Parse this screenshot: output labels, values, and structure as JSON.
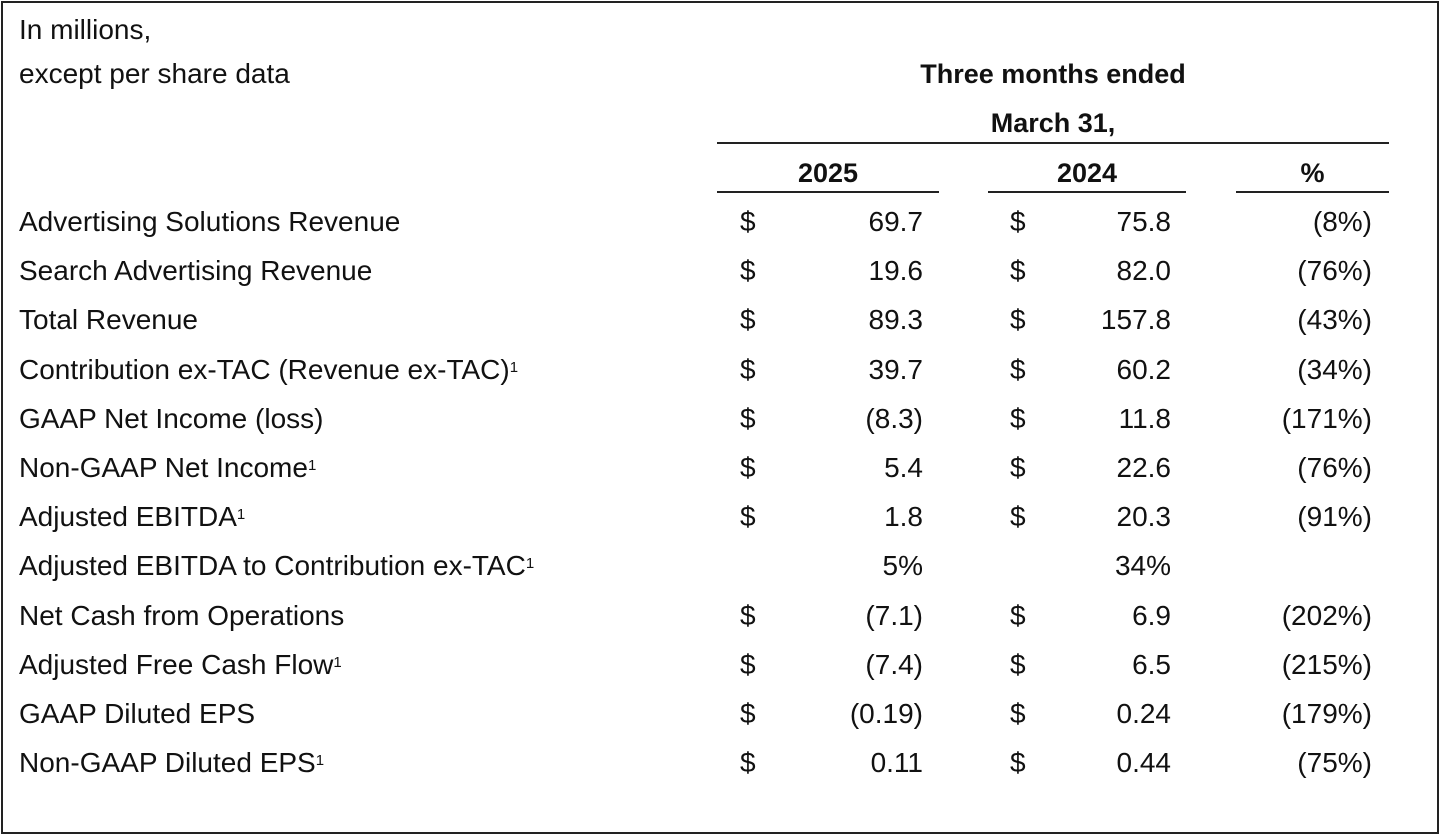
{
  "header": {
    "unit_note_line1": "In millions,",
    "unit_note_line2": "except per share data",
    "period_line1": "Three months ended",
    "period_line2": "March 31,",
    "col_2025": "2025",
    "col_2024": "2024",
    "col_pct": "%"
  },
  "rows": [
    {
      "label": "Advertising Solutions Revenue",
      "sup": "",
      "cur2025": "$",
      "val2025": "69.7",
      "cur2024": "$",
      "val2024": "75.8",
      "pct": "(8%)"
    },
    {
      "label": "Search Advertising Revenue",
      "sup": "",
      "cur2025": "$",
      "val2025": "19.6",
      "cur2024": "$",
      "val2024": "82.0",
      "pct": "(76%)"
    },
    {
      "label": "Total Revenue",
      "sup": "",
      "cur2025": "$",
      "val2025": "89.3",
      "cur2024": "$",
      "val2024": "157.8",
      "pct": "(43%)"
    },
    {
      "label": "Contribution ex-TAC (Revenue ex-TAC)",
      "sup": "1",
      "cur2025": "$",
      "val2025": "39.7",
      "cur2024": "$",
      "val2024": "60.2",
      "pct": "(34%)"
    },
    {
      "label": "GAAP Net Income (loss)",
      "sup": "",
      "cur2025": "$",
      "val2025": "(8.3)",
      "cur2024": "$",
      "val2024": "11.8",
      "pct": "(171%)"
    },
    {
      "label": "Non-GAAP Net Income",
      "sup": "1",
      "cur2025": "$",
      "val2025": "5.4",
      "cur2024": "$",
      "val2024": "22.6",
      "pct": "(76%)"
    },
    {
      "label": "Adjusted EBITDA",
      "sup": "1",
      "cur2025": "$",
      "val2025": "1.8",
      "cur2024": "$",
      "val2024": "20.3",
      "pct": "(91%)"
    },
    {
      "label": "Adjusted EBITDA to Contribution ex-TAC",
      "sup": "1",
      "cur2025": "",
      "val2025": "5%",
      "cur2024": "",
      "val2024": "34%",
      "pct": ""
    },
    {
      "label": "Net Cash from Operations",
      "sup": "",
      "cur2025": "$",
      "val2025": "(7.1)",
      "cur2024": "$",
      "val2024": "6.9",
      "pct": "(202%)"
    },
    {
      "label": "Adjusted Free Cash Flow",
      "sup": "1",
      "cur2025": "$",
      "val2025": "(7.4)",
      "cur2024": "$",
      "val2024": "6.5",
      "pct": "(215%)"
    },
    {
      "label": "GAAP Diluted EPS",
      "sup": "",
      "cur2025": "$",
      "val2025": "(0.19)",
      "cur2024": "$",
      "val2024": "0.24",
      "pct": "(179%)"
    },
    {
      "label": "Non-GAAP Diluted EPS",
      "sup": "1",
      "cur2025": "$",
      "val2025": "0.11",
      "cur2024": "$",
      "val2024": "0.44",
      "pct": "(75%)"
    }
  ]
}
